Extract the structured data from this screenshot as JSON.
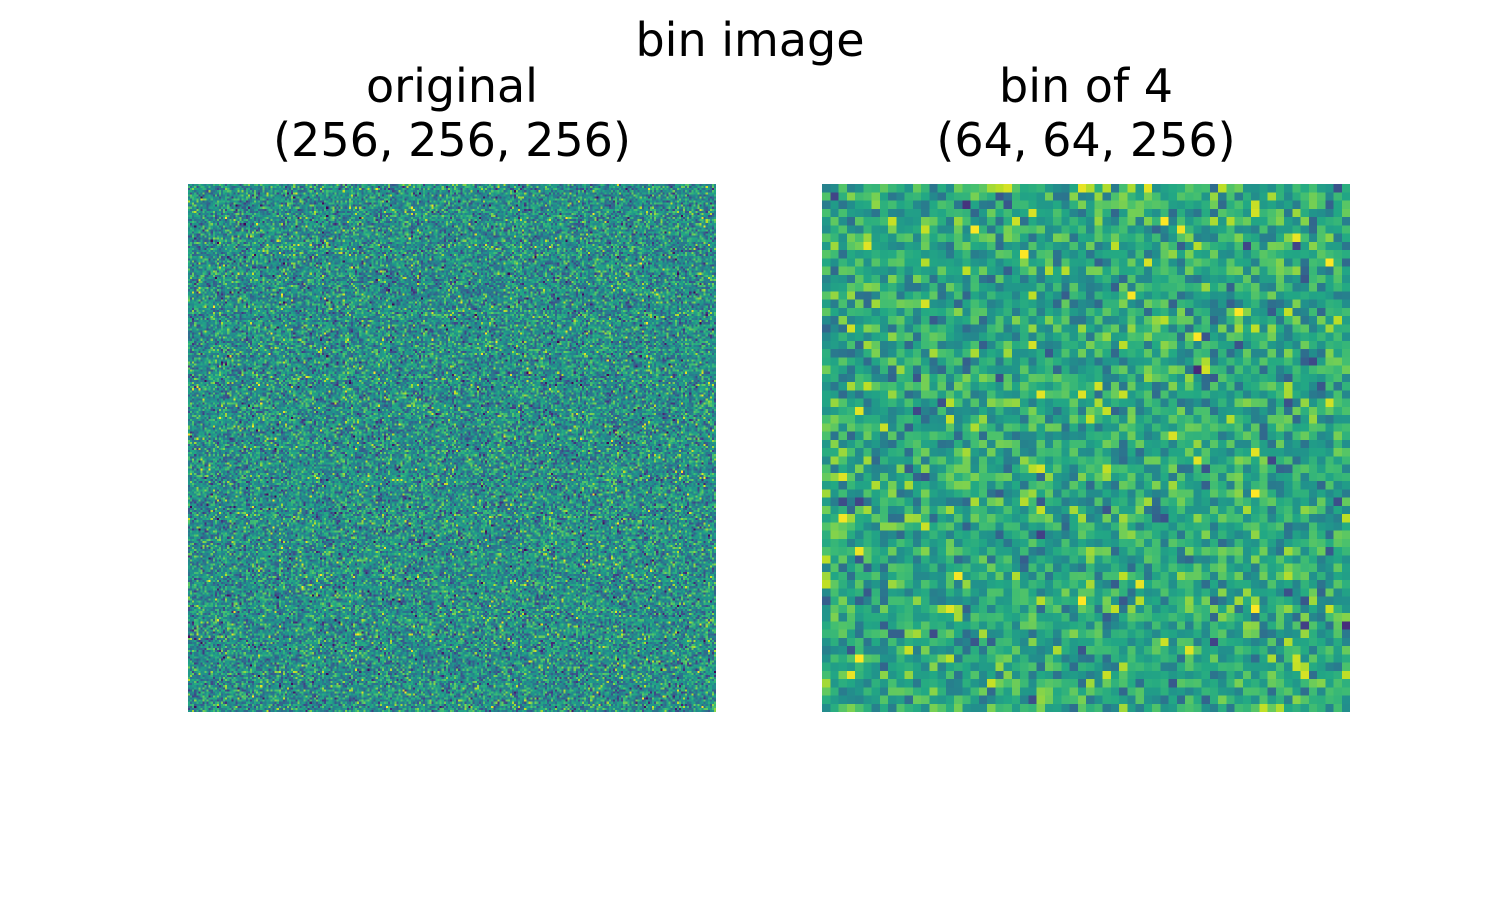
{
  "figure": {
    "suptitle": "bin image"
  },
  "chart_data": [
    {
      "type": "heatmap",
      "title": "original\n(256, 256, 256)",
      "title_lines": [
        "original",
        "(256, 256, 256)"
      ],
      "shape": [
        256,
        256,
        256
      ],
      "grid": [
        256,
        256
      ],
      "colormap": "viridis",
      "axes": "off",
      "value_description": "random noise",
      "value_mean": 0.5,
      "value_spread": 0.16
    },
    {
      "type": "heatmap",
      "title": "bin of 4\n(64, 64, 256)",
      "title_lines": [
        "bin of 4",
        "(64, 64, 256)"
      ],
      "shape": [
        64,
        64,
        256
      ],
      "grid": [
        64,
        64
      ],
      "bin_factor": 4,
      "colormap": "viridis",
      "axes": "off",
      "value_description": "4x4-binned random noise",
      "value_mean": 0.6,
      "value_spread": 0.14
    }
  ]
}
